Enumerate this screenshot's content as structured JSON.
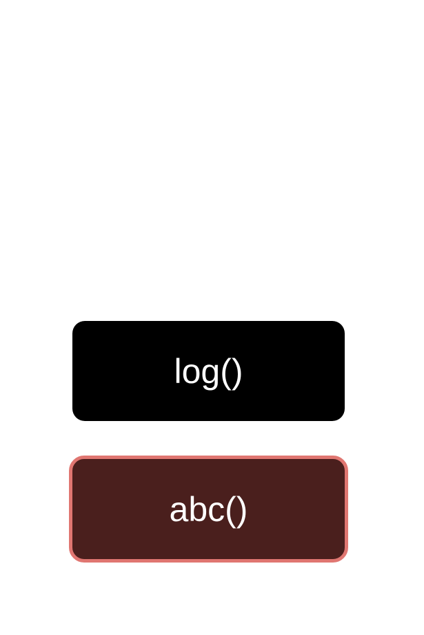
{
  "buttons": {
    "log": {
      "label": "log()",
      "background": "#000000",
      "text_color": "#ffffff"
    },
    "abc": {
      "label": "abc()",
      "background": "#4a1f1d",
      "border_color": "#e07671",
      "text_color": "#ffffff",
      "state": "focused"
    }
  }
}
